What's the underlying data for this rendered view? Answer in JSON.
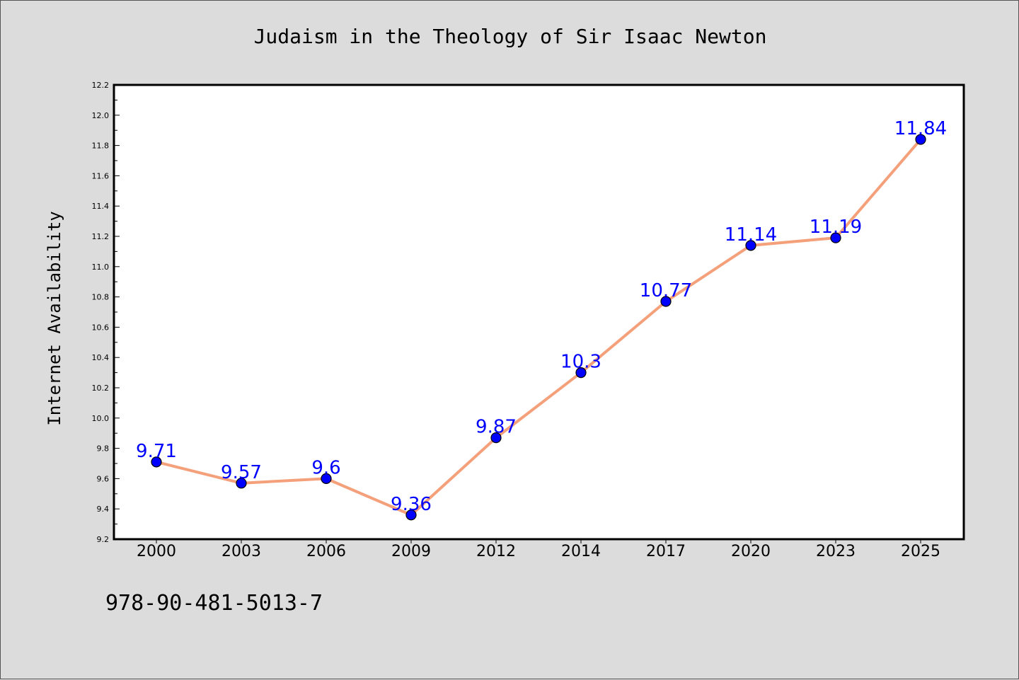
{
  "chart_data": {
    "type": "line",
    "title": "Judaism in the Theology of Sir Isaac Newton",
    "xlabel": "",
    "ylabel": "Internet Availability",
    "categories": [
      "2000",
      "2003",
      "2006",
      "2009",
      "2012",
      "2014",
      "2017",
      "2020",
      "2023",
      "2025"
    ],
    "series": [
      {
        "values": [
          9.71,
          9.57,
          9.6,
          9.36,
          9.87,
          10.3,
          10.77,
          11.14,
          11.19,
          11.84
        ],
        "labels": [
          "9.71",
          "9.57",
          "9.6",
          "9.36",
          "9.87",
          "10.3",
          "10.77",
          "11.14",
          "11.19",
          "11.84"
        ]
      }
    ],
    "ylim": [
      9.2,
      12.2
    ],
    "y_ticks": [
      "9.2",
      "9.4",
      "9.6",
      "9.8",
      "10.0",
      "10.2",
      "10.4",
      "10.6",
      "10.8",
      "11.0",
      "11.2",
      "11.4",
      "11.6",
      "11.8",
      "12.0",
      "12.2"
    ],
    "grid": false,
    "legend": "none",
    "colors": {
      "line": "#f4a07a",
      "marker": "#0000ff",
      "marker_edge": "#000000",
      "data_label": "#0000ff",
      "plot_background": "#ffffff",
      "page_background": "#dcdcdc"
    }
  },
  "footer": {
    "text": "978-90-481-5013-7"
  }
}
